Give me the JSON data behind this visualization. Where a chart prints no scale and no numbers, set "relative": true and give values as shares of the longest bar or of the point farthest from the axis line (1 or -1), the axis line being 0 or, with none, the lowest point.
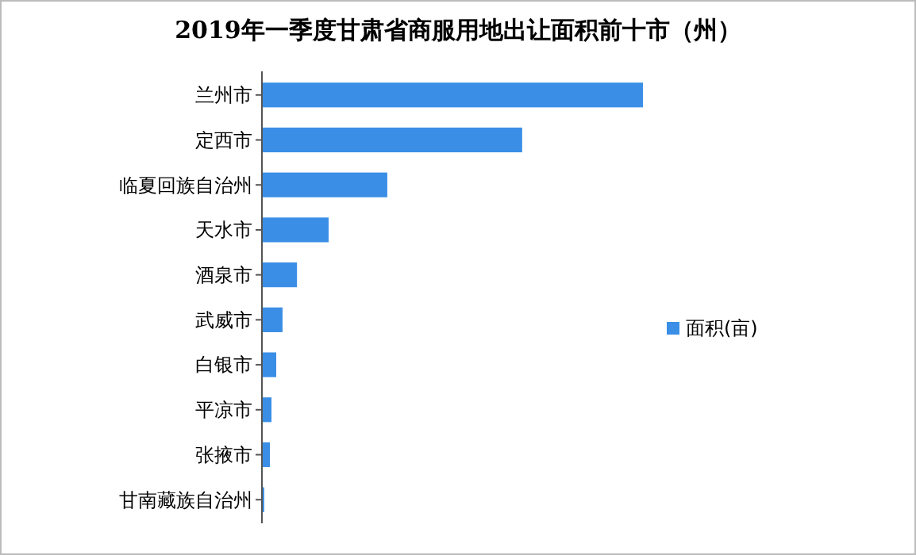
{
  "chart_data": {
    "type": "bar",
    "orientation": "horizontal",
    "relative": true,
    "title": "2019年一季度甘肃省商服用地出让面积前十市（州）",
    "categories": [
      "兰州市",
      "定西市",
      "临夏回族自治州",
      "天水市",
      "酒泉市",
      "武威市",
      "白银市",
      "平凉市",
      "张掖市",
      "甘南藏族自治州"
    ],
    "series": [
      {
        "name": "面积(亩)",
        "color": "#3a8ee6",
        "values": [
          1,
          0.683,
          0.329,
          0.175,
          0.092,
          0.054,
          0.0375,
          0.025,
          0.021,
          0.006
        ]
      }
    ],
    "legend": "right"
  }
}
